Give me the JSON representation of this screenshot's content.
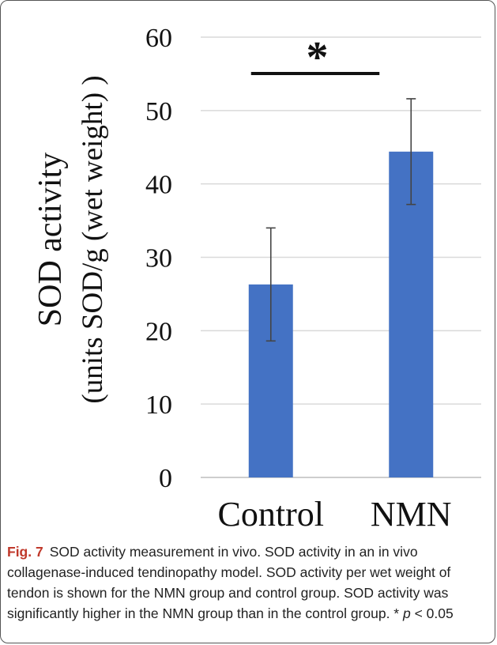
{
  "chart_data": {
    "type": "bar",
    "categories": [
      "Control",
      "NMN"
    ],
    "values": [
      26.3,
      44.4
    ],
    "errors": [
      7.7,
      7.2
    ],
    "ylabel_line1": "SOD activity",
    "ylabel_line2": "(units SOD/g (wet weight) )",
    "ylim": [
      0,
      60
    ],
    "yticks": [
      0,
      10,
      20,
      30,
      40,
      50,
      60
    ],
    "grid": true,
    "bar_color": "#4472c4",
    "significance": {
      "between": [
        "Control",
        "NMN"
      ],
      "symbol": "*"
    }
  },
  "caption": {
    "fig_label": "Fig. 7",
    "text": "SOD activity measurement in vivo. SOD activity in an in vivo collagenase-induced tendinopathy model. SOD activity per wet weight of tendon is shown for the NMN group and control group. SOD activity was significantly higher in the NMN group than in the control group. * ",
    "p_symbol": "p",
    "p_text": " < 0.05"
  }
}
